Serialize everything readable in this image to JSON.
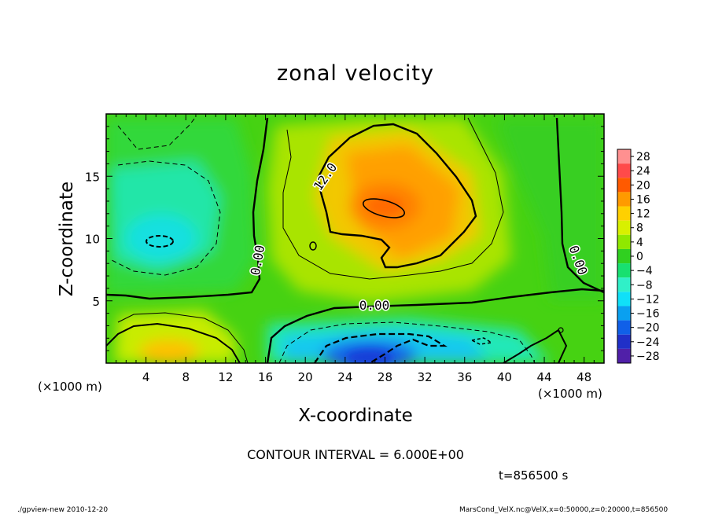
{
  "chart_data": {
    "type": "contour",
    "title": "zonal velocity",
    "xlabel": "X-coordinate",
    "ylabel": "Z-coordinate",
    "x_unit_left": "(×1000 m)",
    "x_unit_right": "(×1000 m)",
    "xlim": [
      0,
      50
    ],
    "ylim": [
      0,
      20
    ],
    "xticks": [
      4,
      8,
      12,
      16,
      20,
      24,
      28,
      32,
      36,
      40,
      44,
      48
    ],
    "yticks": [
      5,
      10,
      15
    ],
    "contour_interval_text": "CONTOUR INTERVAL = 6.000E+00",
    "time_text": "t=856500 s",
    "contour_labels": [
      "12.0",
      "0.00",
      "0.00",
      "0.00"
    ],
    "colorbar": {
      "levels": [
        28,
        24,
        20,
        16,
        12,
        8,
        4,
        0,
        -4,
        -8,
        -12,
        -16,
        -20,
        -24,
        -28
      ],
      "labels": [
        "28",
        "24",
        "20",
        "16",
        "12",
        "8",
        "4",
        "0",
        "−4",
        "−8",
        "−12",
        "−16",
        "−20",
        "−24",
        "−28"
      ],
      "colors": [
        "#ff9090",
        "#ff4a4a",
        "#ff5a00",
        "#ff9a00",
        "#ffd000",
        "#d8f000",
        "#90e800",
        "#30d020",
        "#18e070",
        "#30f0c8",
        "#10e0f8",
        "#0aa0f0",
        "#1060e8",
        "#2030c8",
        "#5020a8"
      ]
    },
    "features": [
      {
        "label": "positive max",
        "x": 28,
        "z": 12.7,
        "value": 18
      },
      {
        "label": "negative core upper-left",
        "x": 5.5,
        "z": 10,
        "value": -12
      },
      {
        "label": "negative near-surface",
        "x": 29,
        "z": 1.5,
        "value": -18
      },
      {
        "label": "positive near-surface",
        "x": 6.5,
        "z": 1.2,
        "value": 13
      }
    ]
  },
  "footer": {
    "left": "./gpview-new   2010-12-20",
    "right": "MarsCond_VelX.nc@VelX,x=0:50000,z=0:20000,t=856500"
  },
  "colors": {
    "background": "#ffffff",
    "frame": "#000000"
  }
}
